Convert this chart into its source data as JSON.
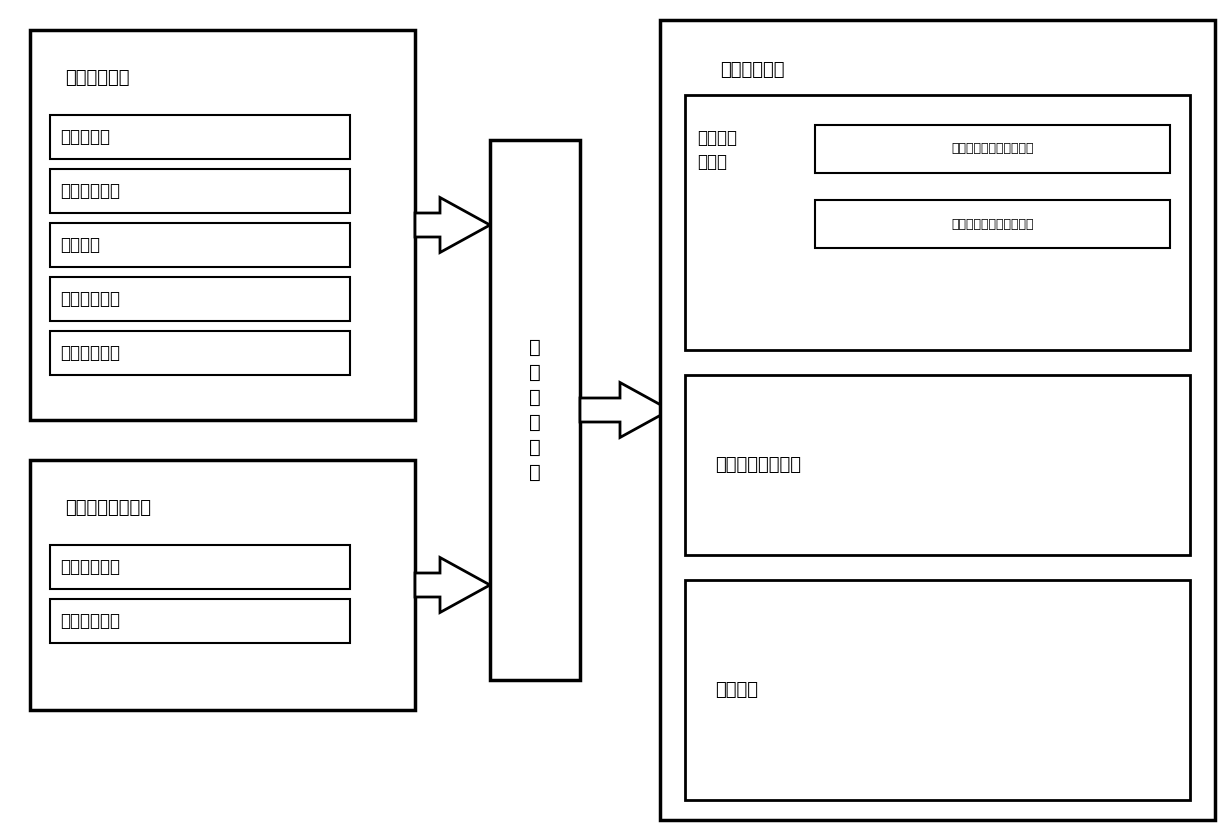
{
  "bg_color": "#ffffff",
  "box1_title": "车身鉴定单元",
  "box1_items": [
    "传感器单元",
    "步骤设定单元",
    "显示单元",
    "信息存储单元",
    "信息显示单元"
  ],
  "box2_title": "车身现况检测单元",
  "box2_items": [
    "数据筛选单元",
    "信息存储单元"
  ],
  "center_box_label": "信\n息\n传\n输\n单\n元",
  "right_outer_label": "中央处理单元",
  "right_sub1_label": "标准数据\n库单元",
  "right_sub1_items": [
    "车身鉴定标准数据库单元",
    "车辆状况标准数据库单元"
  ],
  "right_sub2_label": "价值评估数据单元",
  "right_sub3_label": "显示单元",
  "font_size_box_title": 13,
  "font_size_item": 12,
  "font_size_center": 14,
  "font_size_small": 9,
  "font_size_sub_label": 12
}
